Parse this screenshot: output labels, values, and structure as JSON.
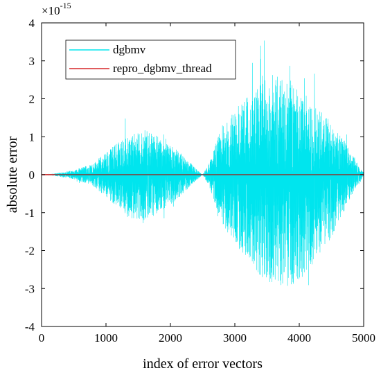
{
  "chart_data": {
    "type": "line",
    "title": "",
    "xlabel": "index of error vectors",
    "ylabel": "absolute error",
    "xlim": [
      0,
      5000
    ],
    "ylim": [
      -4,
      4
    ],
    "y_scale_exponent_label": "×10",
    "y_scale_exponent": "-15",
    "x_ticks": [
      0,
      1000,
      2000,
      3000,
      4000,
      5000
    ],
    "x_tick_labels": [
      "0",
      "1000",
      "2000",
      "3000",
      "4000",
      "5000"
    ],
    "y_ticks": [
      -4,
      -3,
      -2,
      -1,
      0,
      1,
      2,
      3,
      4
    ],
    "y_tick_labels": [
      "-4",
      "-3",
      "-2",
      "-1",
      "0",
      "1",
      "2",
      "3",
      "4"
    ],
    "grid": false,
    "legend_position": "top-left",
    "series": [
      {
        "name": "dgbmv",
        "color": "#00e5ee",
        "envelope": {
          "description": "dense oscillating error, two lobes",
          "x": [
            0,
            200,
            500,
            800,
            1000,
            1200,
            1400,
            1600,
            1800,
            2000,
            2200,
            2400,
            2500,
            2600,
            2800,
            3000,
            3200,
            3400,
            3600,
            3800,
            4000,
            4200,
            4400,
            4600,
            4800,
            5000
          ],
          "upper": [
            0,
            0.03,
            0.12,
            0.3,
            0.6,
            0.9,
            1.05,
            1.2,
            1.05,
            0.8,
            0.5,
            0.15,
            0.0,
            0.3,
            1.3,
            1.7,
            2.1,
            2.4,
            2.7,
            2.6,
            2.3,
            1.9,
            1.6,
            1.2,
            0.6,
            0.05
          ],
          "lower": [
            0,
            -0.03,
            -0.12,
            -0.3,
            -0.6,
            -0.9,
            -1.15,
            -1.2,
            -1.05,
            -0.8,
            -0.5,
            -0.15,
            0.0,
            -0.3,
            -1.3,
            -1.8,
            -2.3,
            -2.7,
            -2.9,
            -3.0,
            -2.8,
            -2.4,
            -2.0,
            -1.3,
            -0.6,
            -0.05
          ],
          "spike_max": [
            1.75,
            4.0
          ],
          "spike_min": [
            -1.55,
            -3.55
          ]
        }
      },
      {
        "name": "repro_dgbmv_thread",
        "color": "#d62728",
        "x": [
          0,
          5000
        ],
        "y": [
          0,
          0
        ]
      }
    ]
  }
}
